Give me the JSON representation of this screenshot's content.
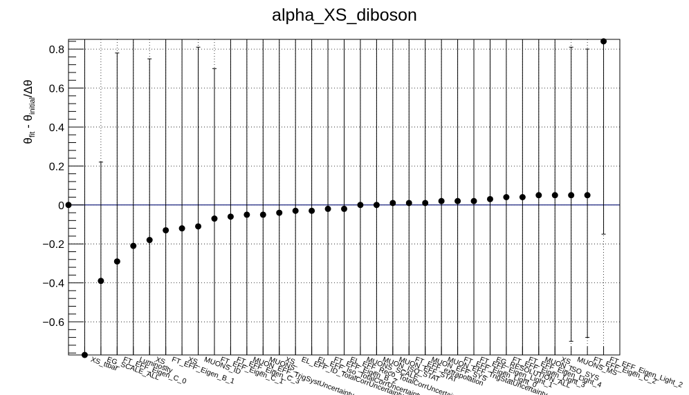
{
  "chart_data": {
    "type": "scatter",
    "title": "alpha_XS_diboson",
    "ylabel": {
      "theta": "θ",
      "sub_fit": "fit",
      "minus": " - ",
      "sub_initial": "initial",
      "tail": "/Δθ"
    },
    "ylim": [
      -0.77,
      0.85
    ],
    "y_ticks": [
      {
        "value": 0.8,
        "label": "0.8"
      },
      {
        "value": 0.6,
        "label": "0.6"
      },
      {
        "value": 0.4,
        "label": "0.4"
      },
      {
        "value": 0.2,
        "label": "0.2"
      },
      {
        "value": 0.0,
        "label": "0"
      },
      {
        "value": -0.2,
        "label": "−0.2"
      },
      {
        "value": -0.4,
        "label": "−0.4"
      },
      {
        "value": -0.6,
        "label": "−0.6"
      }
    ],
    "grid": true,
    "reference_line": 0,
    "points": [
      {
        "label": "",
        "value": 0.0,
        "lo": 0.0,
        "hi": 0.0
      },
      {
        "label": "XS_ttbar",
        "value": -0.77,
        "lo": -0.77,
        "hi": 0.85
      },
      {
        "label": "EG_SCALE_ALL",
        "value": -0.39,
        "lo": -0.77,
        "hi": 0.22
      },
      {
        "label": "FT_EFF_Eigen_C_0",
        "value": -0.29,
        "lo": -0.77,
        "hi": 0.78
      },
      {
        "label": "Luminosity",
        "value": -0.21,
        "lo": -0.77,
        "hi": 0.85
      },
      {
        "label": "XS_",
        "value": -0.18,
        "lo": -0.77,
        "hi": 0.75
      },
      {
        "label": "FT_EFF_Eigen_B_1",
        "value": -0.13,
        "lo": -0.77,
        "hi": 0.85
      },
      {
        "label": "XS_",
        "value": -0.12,
        "lo": -0.77,
        "hi": 0.85
      },
      {
        "label": "MUONS_ID",
        "value": -0.11,
        "lo": -0.77,
        "hi": 0.81
      },
      {
        "label": "FT_EFF_Eigen_C_1",
        "value": -0.07,
        "lo": -0.77,
        "hi": 0.7
      },
      {
        "label": "FT_EFF_Eigen_C_3",
        "value": -0.06,
        "lo": -0.77,
        "hi": 0.85
      },
      {
        "label": "MUON_EFF_TrigSystUncertainty",
        "value": -0.05,
        "lo": -0.77,
        "hi": 0.85
      },
      {
        "label": "MUONS_",
        "value": -0.05,
        "lo": -0.77,
        "hi": 0.85
      },
      {
        "label": "XS_",
        "value": -0.04,
        "lo": -0.77,
        "hi": 0.85
      },
      {
        "label": "EL_EFF_ID_TotalCorrUncertainty",
        "value": -0.03,
        "lo": -0.77,
        "hi": 0.85
      },
      {
        "label": "EL_EFF_Iso_TotalCorrUncertainty",
        "value": -0.03,
        "lo": -0.77,
        "hi": 0.85
      },
      {
        "label": "FT_EFF_Eigen_B_2",
        "value": -0.02,
        "lo": -0.77,
        "hi": 0.85
      },
      {
        "label": "EL_EFF_Reco_TotalCorrUncertainty",
        "value": -0.02,
        "lo": -0.77,
        "hi": 0.85
      },
      {
        "label": "MUONS_SCALE",
        "value": 0.0,
        "lo": -0.77,
        "hi": 0.85
      },
      {
        "label": "MUON_ISO_STAT",
        "value": 0.0,
        "lo": -0.77,
        "hi": 0.85
      },
      {
        "label": "MUON_EFF_STAT",
        "value": 0.01,
        "lo": -0.77,
        "hi": 0.85
      },
      {
        "label": "FT_EFF_extrapolation",
        "value": 0.01,
        "lo": -0.77,
        "hi": 0.85
      },
      {
        "label": "MUON_EFF_SYS",
        "value": 0.01,
        "lo": -0.77,
        "hi": 0.85
      },
      {
        "label": "MUON_EFF_TrigStatUncertainty",
        "value": 0.02,
        "lo": -0.77,
        "hi": 0.85
      },
      {
        "label": "FT_EFF_Eigen_Light_0",
        "value": 0.02,
        "lo": -0.77,
        "hi": 0.85
      },
      {
        "label": "FT_EFF_Eigen_Light_1",
        "value": 0.02,
        "lo": -0.77,
        "hi": 0.85
      },
      {
        "label": "EG_RESOLUTION_ALL",
        "value": 0.03,
        "lo": -0.77,
        "hi": 0.85
      },
      {
        "label": "FT_EFF_Eigen_Light_3",
        "value": 0.04,
        "lo": -0.77,
        "hi": 0.85
      },
      {
        "label": "FT_EFF_Eigen_Light_4",
        "value": 0.04,
        "lo": -0.77,
        "hi": 0.85
      },
      {
        "label": "MUON_ISO_SYS",
        "value": 0.05,
        "lo": -0.77,
        "hi": 0.85
      },
      {
        "label": "XS_",
        "value": 0.05,
        "lo": -0.77,
        "hi": 0.85
      },
      {
        "label": "MUONS_MS",
        "value": 0.05,
        "lo": -0.7,
        "hi": 0.81
      },
      {
        "label": "FT_EFF_Eigen_C_2",
        "value": 0.05,
        "lo": -0.68,
        "hi": 0.8
      },
      {
        "label": "FT_EFF_Eigen_Light_2",
        "value": 0.84,
        "lo": -0.15,
        "hi": 0.85
      }
    ]
  }
}
